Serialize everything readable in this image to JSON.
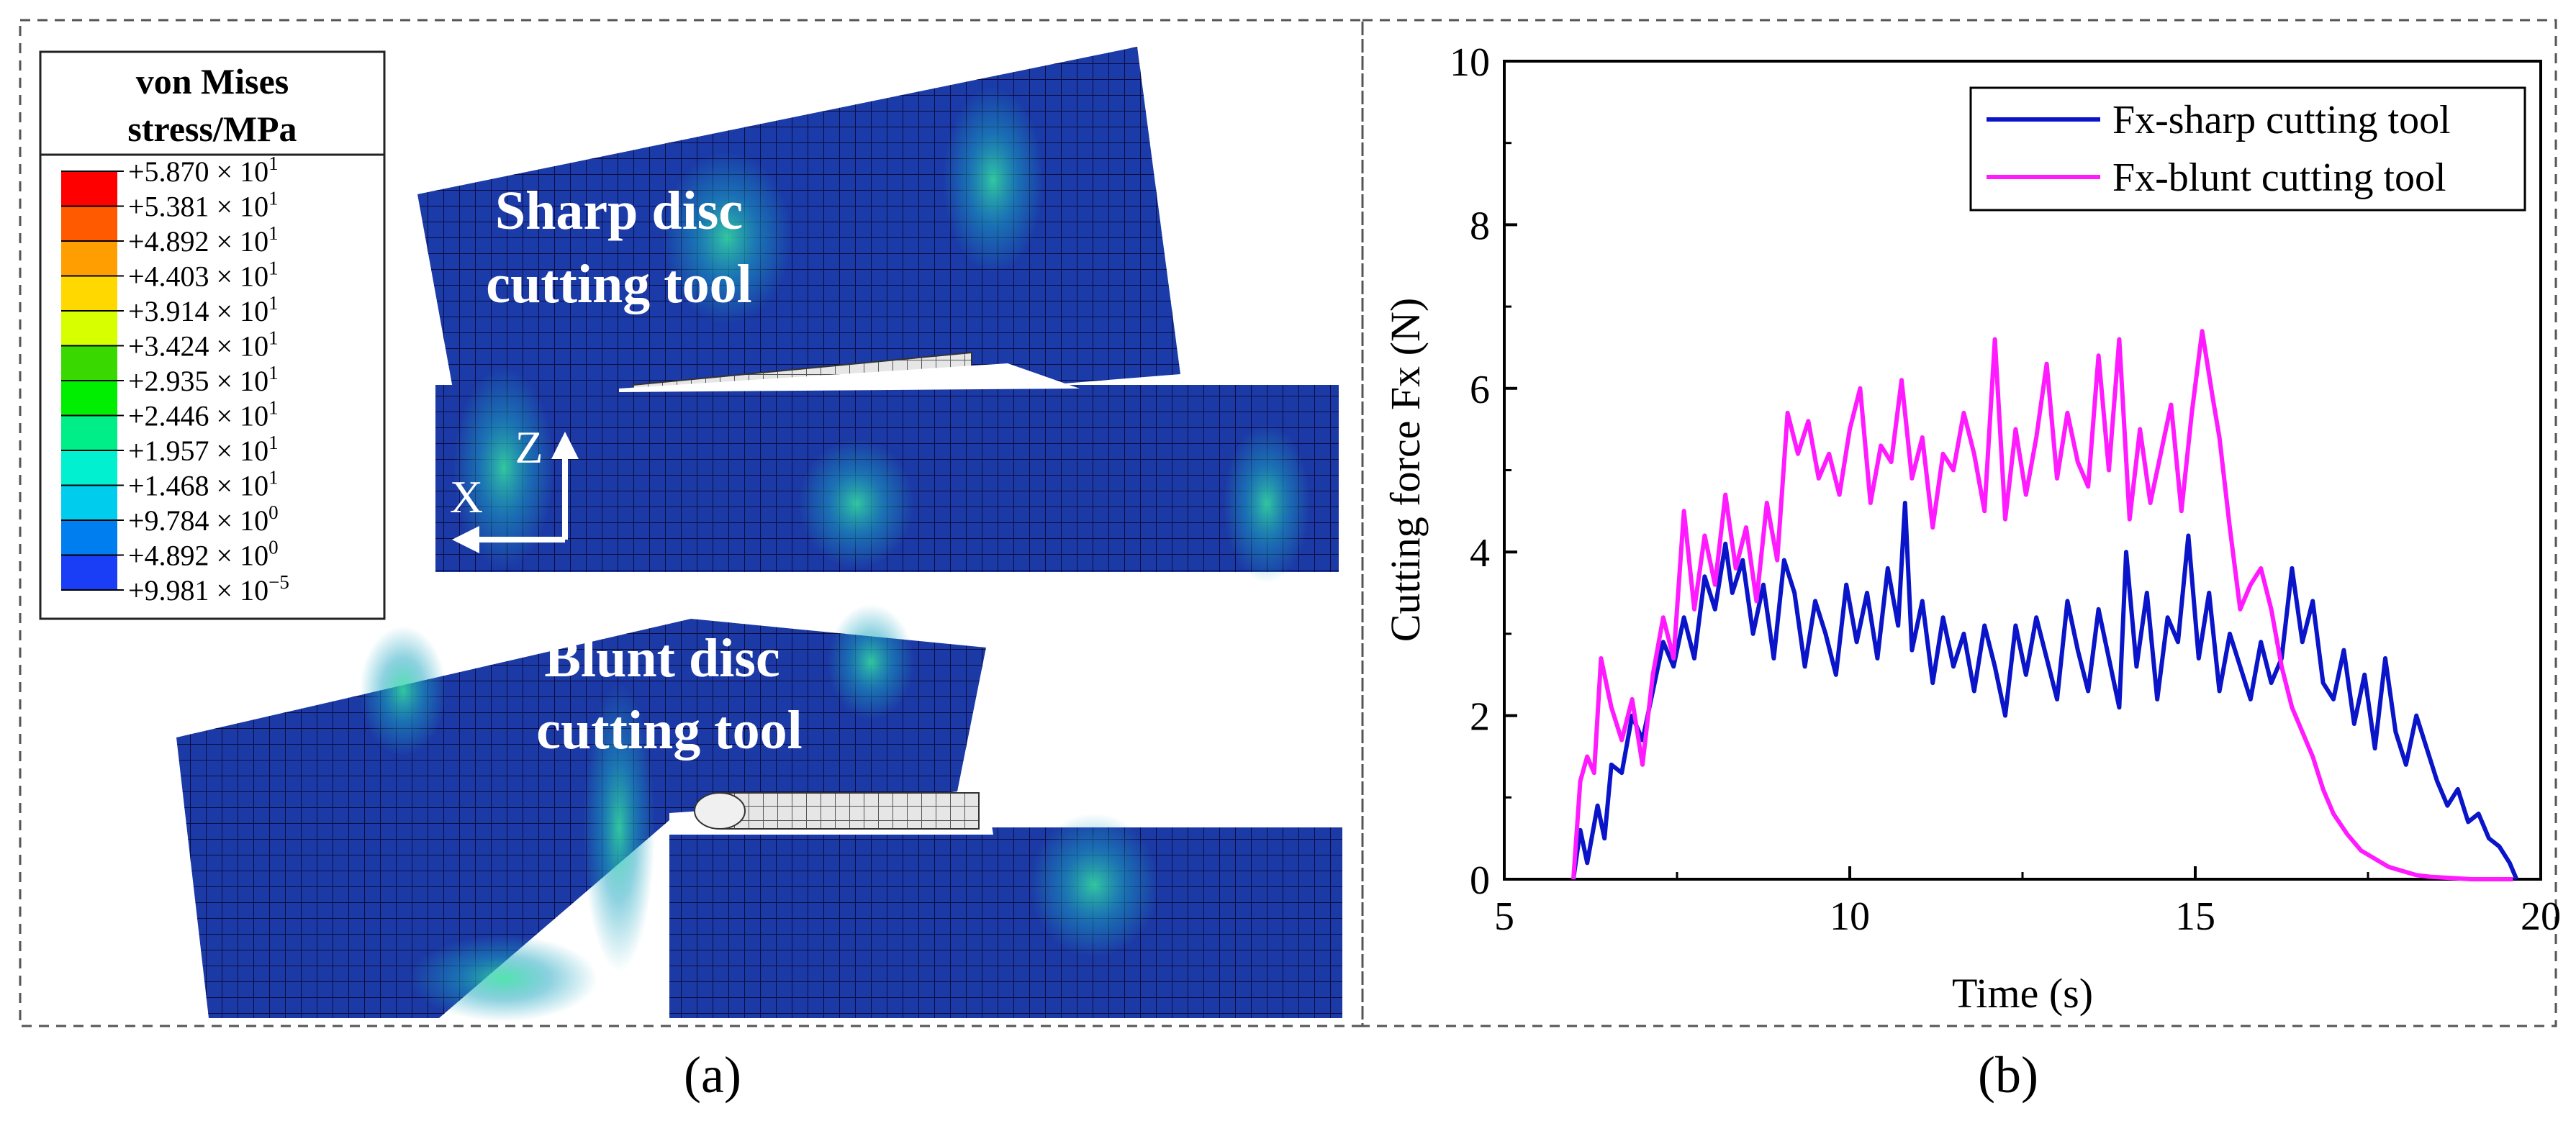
{
  "panel_a": {
    "legend": {
      "title_line1": "von Mises",
      "title_line2": "stress/MPa",
      "entries": [
        {
          "mant": "+5.870",
          "exp": "1",
          "color": "#ff0000"
        },
        {
          "mant": "+5.381",
          "exp": "1",
          "color": "#ff5a00"
        },
        {
          "mant": "+4.892",
          "exp": "1",
          "color": "#ff9e00"
        },
        {
          "mant": "+4.403",
          "exp": "1",
          "color": "#ffd800"
        },
        {
          "mant": "+3.914",
          "exp": "1",
          "color": "#d8ff00"
        },
        {
          "mant": "+3.424",
          "exp": "1",
          "color": "#38d800"
        },
        {
          "mant": "+2.935",
          "exp": "1",
          "color": "#00ee00"
        },
        {
          "mant": "+2.446",
          "exp": "1",
          "color": "#00ee88"
        },
        {
          "mant": "+1.957",
          "exp": "1",
          "color": "#00f0d0"
        },
        {
          "mant": "+1.468",
          "exp": "1",
          "color": "#00cdee"
        },
        {
          "mant": "+9.784",
          "exp": "0",
          "color": "#007ef0"
        },
        {
          "mant": "+4.892",
          "exp": "0",
          "color": "#1a3ef5"
        },
        {
          "mant": "+9.981",
          "exp": "−5",
          "color": "#0000e8"
        }
      ]
    },
    "sharp_label_line1": "Sharp disc",
    "sharp_label_line2": "cutting tool",
    "blunt_label_line1": "Blunt disc",
    "blunt_label_line2": "cutting tool",
    "axis_z": "Z",
    "axis_x": "X",
    "caption": "(a)"
  },
  "panel_b": {
    "caption": "(b)"
  },
  "chart_data": {
    "type": "line",
    "title": "",
    "xlabel": "Time (s)",
    "ylabel": "Cutting force Fx (N)",
    "xlim": [
      5,
      20
    ],
    "ylim": [
      0,
      10
    ],
    "xticks": [
      5,
      10,
      15,
      20
    ],
    "yticks": [
      0,
      2,
      4,
      6,
      8,
      10
    ],
    "legend_position": "top-right",
    "series": [
      {
        "name": "Fx-sharp cutting tool",
        "color": "#0a14c8",
        "x": [
          6.0,
          6.1,
          6.2,
          6.35,
          6.45,
          6.55,
          6.7,
          6.85,
          7.0,
          7.15,
          7.3,
          7.45,
          7.6,
          7.75,
          7.9,
          8.05,
          8.2,
          8.3,
          8.45,
          8.6,
          8.75,
          8.9,
          9.05,
          9.2,
          9.35,
          9.5,
          9.65,
          9.8,
          9.95,
          10.1,
          10.25,
          10.4,
          10.55,
          10.7,
          10.8,
          10.9,
          11.05,
          11.2,
          11.35,
          11.5,
          11.65,
          11.8,
          11.95,
          12.1,
          12.25,
          12.4,
          12.55,
          12.7,
          12.85,
          13.0,
          13.15,
          13.3,
          13.45,
          13.6,
          13.75,
          13.9,
          14.0,
          14.15,
          14.3,
          14.45,
          14.6,
          14.75,
          14.9,
          15.05,
          15.2,
          15.35,
          15.5,
          15.65,
          15.8,
          15.95,
          16.1,
          16.25,
          16.4,
          16.55,
          16.7,
          16.85,
          17.0,
          17.15,
          17.3,
          17.45,
          17.6,
          17.75,
          17.9,
          18.05,
          18.2,
          18.35,
          18.5,
          18.65,
          18.8,
          18.95,
          19.1,
          19.25,
          19.4,
          19.55,
          19.65
        ],
        "values": [
          0.0,
          0.6,
          0.2,
          0.9,
          0.5,
          1.4,
          1.3,
          2.0,
          1.7,
          2.3,
          2.9,
          2.6,
          3.2,
          2.7,
          3.7,
          3.3,
          4.1,
          3.5,
          3.9,
          3.0,
          3.6,
          2.7,
          3.9,
          3.5,
          2.6,
          3.4,
          3.0,
          2.5,
          3.6,
          2.9,
          3.5,
          2.7,
          3.8,
          3.1,
          4.6,
          2.8,
          3.4,
          2.4,
          3.2,
          2.6,
          3.0,
          2.3,
          3.1,
          2.6,
          2.0,
          3.1,
          2.5,
          3.2,
          2.7,
          2.2,
          3.4,
          2.8,
          2.3,
          3.3,
          2.7,
          2.1,
          4.0,
          2.6,
          3.5,
          2.2,
          3.2,
          2.9,
          4.2,
          2.7,
          3.5,
          2.3,
          3.0,
          2.6,
          2.2,
          2.9,
          2.4,
          2.7,
          3.8,
          2.9,
          3.4,
          2.4,
          2.2,
          2.8,
          1.9,
          2.5,
          1.6,
          2.7,
          1.8,
          1.4,
          2.0,
          1.6,
          1.2,
          0.9,
          1.1,
          0.7,
          0.8,
          0.5,
          0.4,
          0.2,
          0.0
        ]
      },
      {
        "name": "Fx-blunt cutting tool",
        "color": "#ff1aff",
        "x": [
          6.0,
          6.1,
          6.2,
          6.3,
          6.4,
          6.55,
          6.7,
          6.85,
          7.0,
          7.15,
          7.3,
          7.45,
          7.6,
          7.75,
          7.9,
          8.05,
          8.2,
          8.35,
          8.5,
          8.65,
          8.8,
          8.95,
          9.1,
          9.25,
          9.4,
          9.55,
          9.7,
          9.85,
          10.0,
          10.15,
          10.3,
          10.45,
          10.6,
          10.75,
          10.9,
          11.05,
          11.2,
          11.35,
          11.5,
          11.65,
          11.8,
          11.95,
          12.1,
          12.25,
          12.4,
          12.55,
          12.7,
          12.85,
          13.0,
          13.15,
          13.3,
          13.45,
          13.6,
          13.75,
          13.9,
          14.05,
          14.2,
          14.35,
          14.5,
          14.65,
          14.8,
          14.95,
          15.1,
          15.25,
          15.35,
          15.5,
          15.65,
          15.8,
          15.95,
          16.1,
          16.25,
          16.4,
          16.55,
          16.7,
          16.85,
          17.0,
          17.2,
          17.4,
          17.6,
          17.8,
          18.0,
          18.2,
          18.4,
          18.6,
          18.8,
          19.0,
          19.2,
          19.4,
          19.6
        ],
        "values": [
          0.0,
          1.2,
          1.5,
          1.3,
          2.7,
          2.1,
          1.7,
          2.2,
          1.4,
          2.5,
          3.2,
          2.7,
          4.5,
          3.3,
          4.2,
          3.6,
          4.7,
          3.8,
          4.3,
          3.4,
          4.6,
          3.9,
          5.7,
          5.2,
          5.6,
          4.9,
          5.2,
          4.7,
          5.5,
          6.0,
          4.6,
          5.3,
          5.1,
          6.1,
          4.9,
          5.4,
          4.3,
          5.2,
          5.0,
          5.7,
          5.2,
          4.5,
          6.6,
          4.4,
          5.5,
          4.7,
          5.4,
          6.3,
          4.9,
          5.7,
          5.1,
          4.8,
          6.4,
          5.0,
          6.6,
          4.4,
          5.5,
          4.6,
          5.2,
          5.8,
          4.5,
          5.7,
          6.7,
          5.9,
          5.4,
          4.3,
          3.3,
          3.6,
          3.8,
          3.3,
          2.6,
          2.1,
          1.8,
          1.5,
          1.1,
          0.8,
          0.55,
          0.35,
          0.25,
          0.15,
          0.1,
          0.05,
          0.03,
          0.02,
          0.01,
          0.0,
          0.0,
          0.0,
          0.0
        ]
      }
    ]
  }
}
